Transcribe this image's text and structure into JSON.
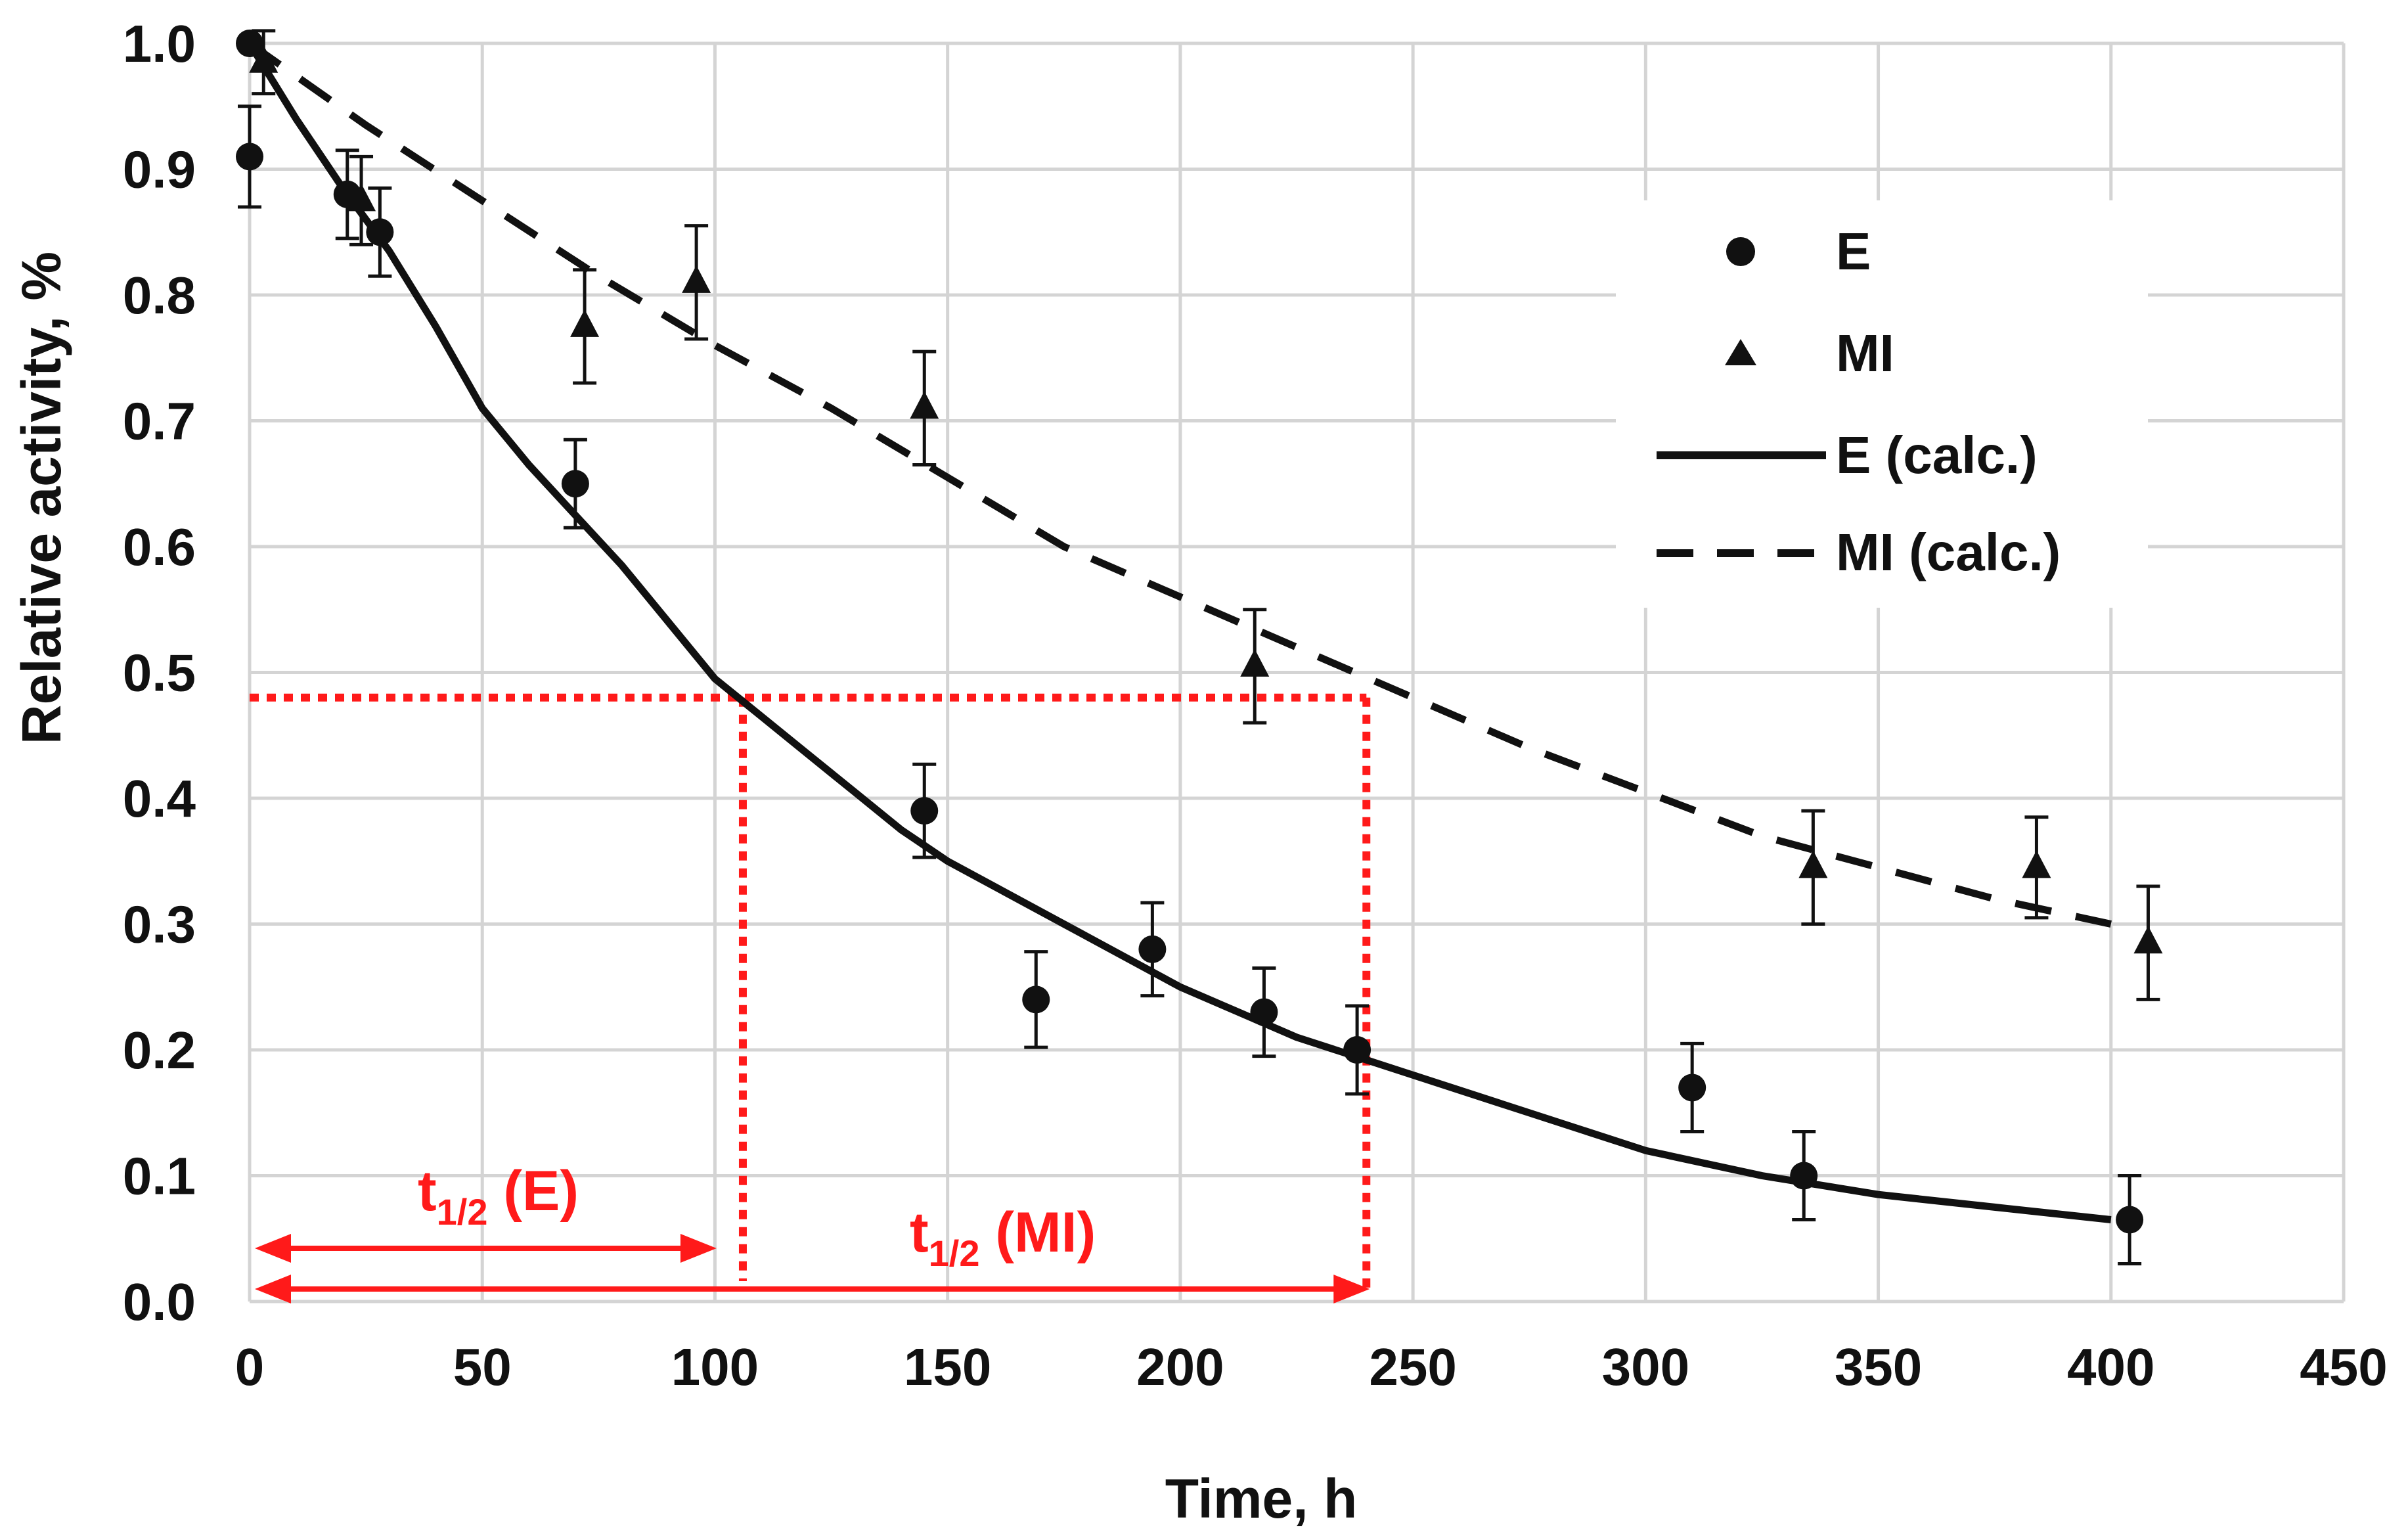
{
  "chart_data": {
    "type": "scatter",
    "title": "",
    "xlabel": "Time, h",
    "ylabel": "Relative activity, %",
    "xlim": [
      0,
      450
    ],
    "ylim": [
      0,
      1.0
    ],
    "grid": true,
    "legend_position": "top-right",
    "x_ticks": [
      "0",
      "50",
      "100",
      "150",
      "200",
      "250",
      "300",
      "350",
      "400",
      "450"
    ],
    "y_ticks": [
      "0.0",
      "0.1",
      "0.2",
      "0.3",
      "0.4",
      "0.5",
      "0.6",
      "0.7",
      "0.8",
      "0.9",
      "1.0"
    ],
    "series": [
      {
        "name": "E",
        "kind": "points",
        "marker": "circle",
        "points": [
          {
            "x": 0,
            "y": 0.91,
            "err": 0.04
          },
          {
            "x": 0,
            "y": 1.0,
            "err": 0
          },
          {
            "x": 21,
            "y": 0.88,
            "err": 0.035
          },
          {
            "x": 28,
            "y": 0.85,
            "err": 0.035
          },
          {
            "x": 70,
            "y": 0.65,
            "err": 0.035
          },
          {
            "x": 145,
            "y": 0.39,
            "err": 0.037
          },
          {
            "x": 169,
            "y": 0.24,
            "err": 0.038
          },
          {
            "x": 194,
            "y": 0.28,
            "err": 0.037
          },
          {
            "x": 218,
            "y": 0.23,
            "err": 0.035
          },
          {
            "x": 238,
            "y": 0.2,
            "err": 0.035
          },
          {
            "x": 310,
            "y": 0.17,
            "err": 0.035
          },
          {
            "x": 334,
            "y": 0.1,
            "err": 0.035
          },
          {
            "x": 404,
            "y": 0.065,
            "err": 0.035
          }
        ]
      },
      {
        "name": "MI",
        "kind": "points",
        "marker": "triangle",
        "points": [
          {
            "x": 3,
            "y": 0.985,
            "err": 0.025
          },
          {
            "x": 24,
            "y": 0.875,
            "err": 0.035
          },
          {
            "x": 72,
            "y": 0.775,
            "err": 0.045
          },
          {
            "x": 96,
            "y": 0.81,
            "err": 0.045
          },
          {
            "x": 145,
            "y": 0.71,
            "err": 0.045
          },
          {
            "x": 216,
            "y": 0.505,
            "err": 0.045
          },
          {
            "x": 336,
            "y": 0.345,
            "err": 0.045
          },
          {
            "x": 384,
            "y": 0.345,
            "err": 0.04
          },
          {
            "x": 408,
            "y": 0.285,
            "err": 0.045
          }
        ]
      },
      {
        "name": "E (calc.)",
        "kind": "line",
        "style": "solid",
        "x": [
          0,
          10,
          20,
          30,
          40,
          50,
          60,
          70,
          80,
          90,
          100,
          110,
          120,
          130,
          140,
          150,
          175,
          200,
          225,
          250,
          275,
          300,
          325,
          350,
          375,
          400
        ],
        "y": [
          1.0,
          0.94,
          0.885,
          0.835,
          0.775,
          0.71,
          0.665,
          0.625,
          0.585,
          0.54,
          0.495,
          0.465,
          0.435,
          0.405,
          0.375,
          0.35,
          0.3,
          0.25,
          0.21,
          0.18,
          0.15,
          0.12,
          0.1,
          0.085,
          0.075,
          0.065
        ]
      },
      {
        "name": "MI (calc.)",
        "kind": "line",
        "style": "dashed",
        "x": [
          0,
          25,
          50,
          75,
          100,
          125,
          150,
          175,
          200,
          225,
          250,
          275,
          300,
          325,
          350,
          375,
          400
        ],
        "y": [
          1.0,
          0.935,
          0.875,
          0.815,
          0.76,
          0.71,
          0.655,
          0.6,
          0.56,
          0.52,
          0.48,
          0.44,
          0.405,
          0.37,
          0.345,
          0.32,
          0.3
        ]
      }
    ],
    "annotations": {
      "color": "#ff1a1a",
      "half_activity_level": 0.48,
      "t_half_E": 106,
      "t_half_MI": 240,
      "label_E_main": "t",
      "label_E_sub": "1/2",
      "label_E_rest": " (E)",
      "label_MI_main": "t",
      "label_MI_sub": "1/2",
      "label_MI_rest": " (MI)"
    }
  }
}
